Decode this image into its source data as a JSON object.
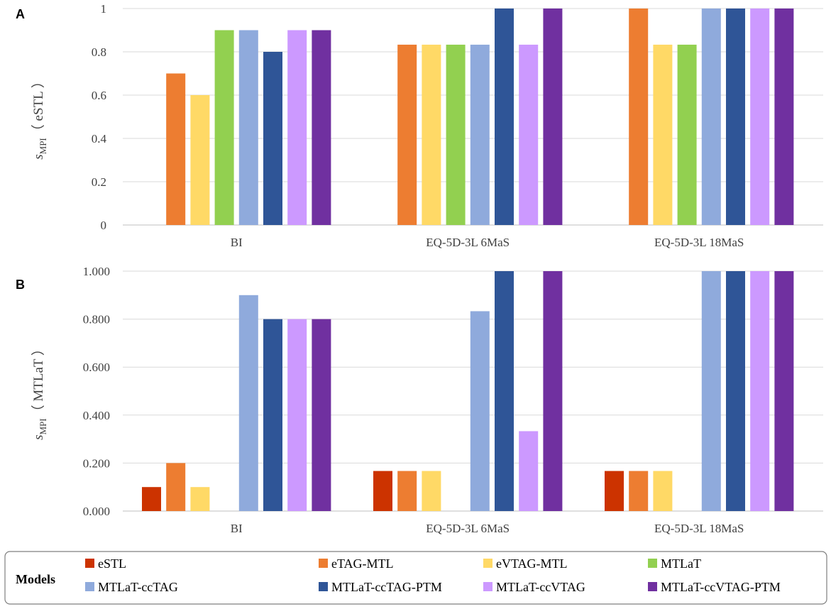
{
  "legend": {
    "title": "Models",
    "placement": "bottom"
  },
  "series_colors": {
    "eSTL": "#cc3300",
    "eTAG-MTL": "#ed7d31",
    "eVTAG-MTL": "#ffd966",
    "MTLaT": "#92d050",
    "MTLaT-ccTAG": "#8faadc",
    "MTLaT-ccTAG-PTM": "#2f5597",
    "MTLaT-ccVTAG": "#cc99ff",
    "MTLaT-ccVTAG-PTM": "#7030a0"
  },
  "chart_data": [
    {
      "panel": "A",
      "type": "bar",
      "ylabel_main": "s",
      "ylabel_sub": "MPI",
      "ylabel_paren": "（ eSTL ）",
      "ylim": [
        0,
        1
      ],
      "yticks": [
        0,
        0.2,
        0.4,
        0.6,
        0.8,
        1
      ],
      "ytick_labels": [
        "0",
        "0.2",
        "0.4",
        "0.6",
        "0.8",
        "1"
      ],
      "grid": true,
      "categories": [
        "BI",
        "EQ-5D-3L 6MaS",
        "EQ-5D-3L 18MaS"
      ],
      "series": [
        {
          "name": "eSTL",
          "values": [
            0,
            0,
            0
          ]
        },
        {
          "name": "eTAG-MTL",
          "values": [
            0.7,
            0.833,
            1.0
          ]
        },
        {
          "name": "eVTAG-MTL",
          "values": [
            0.6,
            0.833,
            0.833
          ]
        },
        {
          "name": "MTLaT",
          "values": [
            0.9,
            0.833,
            0.833
          ]
        },
        {
          "name": "MTLaT-ccTAG",
          "values": [
            0.9,
            0.833,
            1.0
          ]
        },
        {
          "name": "MTLaT-ccTAG-PTM",
          "values": [
            0.8,
            1.0,
            1.0
          ]
        },
        {
          "name": "MTLaT-ccVTAG",
          "values": [
            0.9,
            0.833,
            1.0
          ]
        },
        {
          "name": "MTLaT-ccVTAG-PTM",
          "values": [
            0.9,
            1.0,
            1.0
          ]
        }
      ]
    },
    {
      "panel": "B",
      "type": "bar",
      "ylabel_main": "s",
      "ylabel_sub": "MPI",
      "ylabel_paren": "（ MTLaT ）",
      "ylim": [
        0,
        1
      ],
      "yticks": [
        0,
        0.2,
        0.4,
        0.6,
        0.8,
        1
      ],
      "ytick_labels": [
        "0.000",
        "0.200",
        "0.400",
        "0.600",
        "0.800",
        "1.000"
      ],
      "grid": true,
      "categories": [
        "BI",
        "EQ-5D-3L 6MaS",
        "EQ-5D-3L 18MaS"
      ],
      "series": [
        {
          "name": "eSTL",
          "values": [
            0.1,
            0.167,
            0.167
          ]
        },
        {
          "name": "eTAG-MTL",
          "values": [
            0.2,
            0.167,
            0.167
          ]
        },
        {
          "name": "eVTAG-MTL",
          "values": [
            0.1,
            0.167,
            0.167
          ]
        },
        {
          "name": "MTLaT",
          "values": [
            0,
            0,
            0
          ]
        },
        {
          "name": "MTLaT-ccTAG",
          "values": [
            0.9,
            0.833,
            1.0
          ]
        },
        {
          "name": "MTLaT-ccTAG-PTM",
          "values": [
            0.8,
            1.0,
            1.0
          ]
        },
        {
          "name": "MTLaT-ccVTAG",
          "values": [
            0.8,
            0.333,
            1.0
          ]
        },
        {
          "name": "MTLaT-ccVTAG-PTM",
          "values": [
            0.8,
            1.0,
            1.0
          ]
        }
      ]
    }
  ]
}
